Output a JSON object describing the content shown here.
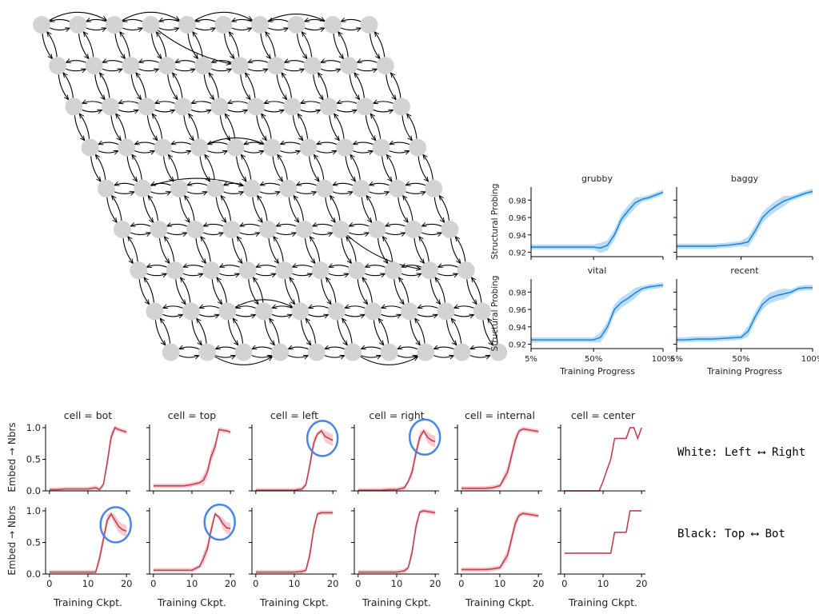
{
  "lattice": {
    "rows": 9,
    "cols": 10,
    "node_color": "#d3d3d3",
    "edge_color": "#000000"
  },
  "struct": {
    "ylabel": "Structural Probing",
    "xlabel": "Training Progress",
    "x_ticks": [
      "5%",
      "50%",
      "100%"
    ],
    "y_ticks": [
      "0.92",
      "0.94",
      "0.96",
      "0.98"
    ],
    "line_color": "#1f88e0",
    "band_color": "#a9d3f2"
  },
  "grid": {
    "ylabel": "Embed → Nbrs",
    "xlabel": "Training Ckpt.",
    "x_ticks": [
      "0",
      "10",
      "20"
    ],
    "y_ticks": [
      "0.0",
      "0.5",
      "1.0"
    ],
    "line_color": "#c0424f",
    "band_color": "#f2bcc4",
    "circle_color": "#4a86e8"
  },
  "annotations": {
    "white": "White: Left ⟷ Right",
    "black": "Black: Top ⟷ Bot"
  },
  "chart_data": [
    {
      "type": "line",
      "title": "grubby",
      "ylim": [
        0.915,
        0.995
      ],
      "x": [
        0.05,
        0.1,
        0.2,
        0.3,
        0.4,
        0.5,
        0.55,
        0.6,
        0.65,
        0.7,
        0.75,
        0.8,
        0.85,
        0.9,
        0.95,
        1.0
      ],
      "series": [
        {
          "values": [
            0.926,
            0.926,
            0.926,
            0.926,
            0.926,
            0.926,
            0.925,
            0.928,
            0.94,
            0.958,
            0.968,
            0.977,
            0.981,
            0.983,
            0.986,
            0.989
          ]
        }
      ]
    },
    {
      "type": "line",
      "title": "baggy",
      "ylim": [
        0.915,
        0.995
      ],
      "x": [
        0.05,
        0.1,
        0.2,
        0.3,
        0.4,
        0.5,
        0.55,
        0.6,
        0.65,
        0.7,
        0.75,
        0.8,
        0.85,
        0.9,
        0.95,
        1.0
      ],
      "series": [
        {
          "values": [
            0.927,
            0.927,
            0.927,
            0.927,
            0.928,
            0.93,
            0.932,
            0.945,
            0.96,
            0.968,
            0.974,
            0.979,
            0.982,
            0.985,
            0.988,
            0.99
          ]
        }
      ]
    },
    {
      "type": "line",
      "title": "vital",
      "ylim": [
        0.915,
        0.995
      ],
      "x": [
        0.05,
        0.1,
        0.2,
        0.3,
        0.4,
        0.5,
        0.55,
        0.6,
        0.65,
        0.7,
        0.75,
        0.8,
        0.85,
        0.9,
        0.95,
        1.0
      ],
      "series": [
        {
          "values": [
            0.925,
            0.925,
            0.925,
            0.925,
            0.925,
            0.925,
            0.928,
            0.94,
            0.96,
            0.968,
            0.973,
            0.979,
            0.984,
            0.986,
            0.987,
            0.988
          ]
        }
      ]
    },
    {
      "type": "line",
      "title": "recent",
      "ylim": [
        0.915,
        0.995
      ],
      "x": [
        0.05,
        0.1,
        0.2,
        0.3,
        0.4,
        0.5,
        0.55,
        0.6,
        0.65,
        0.7,
        0.75,
        0.8,
        0.85,
        0.9,
        0.95,
        1.0
      ],
      "series": [
        {
          "values": [
            0.925,
            0.925,
            0.926,
            0.926,
            0.927,
            0.928,
            0.935,
            0.952,
            0.966,
            0.973,
            0.976,
            0.978,
            0.98,
            0.984,
            0.985,
            0.985
          ]
        }
      ]
    },
    {
      "type": "line",
      "title": "cell = bot",
      "ylim": [
        0,
        1.05
      ],
      "x": [
        0,
        2,
        4,
        6,
        8,
        10,
        12,
        13,
        14,
        15,
        16,
        17,
        18,
        19,
        20
      ],
      "series": [
        {
          "values": [
            0.02,
            0.02,
            0.03,
            0.03,
            0.03,
            0.03,
            0.05,
            0.02,
            0.1,
            0.45,
            0.85,
            1.0,
            0.97,
            0.95,
            0.93
          ]
        }
      ]
    },
    {
      "type": "line",
      "title": "cell = top",
      "ylim": [
        0,
        1.05
      ],
      "x": [
        0,
        2,
        4,
        6,
        8,
        10,
        12,
        13,
        14,
        15,
        16,
        17,
        18,
        19,
        20
      ],
      "series": [
        {
          "values": [
            0.08,
            0.08,
            0.08,
            0.08,
            0.08,
            0.1,
            0.13,
            0.17,
            0.3,
            0.55,
            0.7,
            0.97,
            0.96,
            0.95,
            0.93
          ]
        }
      ]
    },
    {
      "type": "line",
      "title": "cell = left",
      "ylim": [
        0,
        1.05
      ],
      "x": [
        0,
        2,
        4,
        6,
        8,
        10,
        12,
        13,
        14,
        15,
        16,
        17,
        18,
        19,
        20
      ],
      "series": [
        {
          "values": [
            0.01,
            0.01,
            0.01,
            0.01,
            0.01,
            0.01,
            0.03,
            0.1,
            0.4,
            0.75,
            0.9,
            0.95,
            0.86,
            0.83,
            0.8
          ]
        }
      ]
    },
    {
      "type": "line",
      "title": "cell = right",
      "ylim": [
        0,
        1.05
      ],
      "x": [
        0,
        2,
        4,
        6,
        8,
        10,
        12,
        13,
        14,
        15,
        16,
        17,
        18,
        19,
        20
      ],
      "series": [
        {
          "values": [
            0.01,
            0.01,
            0.01,
            0.01,
            0.02,
            0.02,
            0.05,
            0.15,
            0.3,
            0.6,
            0.85,
            0.95,
            0.85,
            0.8,
            0.78
          ]
        }
      ]
    },
    {
      "type": "line",
      "title": "cell = internal",
      "ylim": [
        0,
        1.05
      ],
      "x": [
        0,
        2,
        4,
        6,
        8,
        10,
        12,
        13,
        14,
        15,
        16,
        17,
        18,
        19,
        20
      ],
      "series": [
        {
          "values": [
            0.04,
            0.04,
            0.04,
            0.04,
            0.05,
            0.08,
            0.3,
            0.55,
            0.8,
            0.95,
            0.98,
            0.97,
            0.96,
            0.95,
            0.94
          ]
        }
      ]
    },
    {
      "type": "line",
      "title": "cell = center",
      "ylim": [
        0,
        1.05
      ],
      "x": [
        0,
        4,
        8,
        9,
        10,
        11,
        12,
        13,
        14,
        15,
        16,
        17,
        18,
        19,
        20
      ],
      "series": [
        {
          "values": [
            0.0,
            0.0,
            0.0,
            0.0,
            0.15,
            0.33,
            0.5,
            0.83,
            0.83,
            0.83,
            0.83,
            1.0,
            1.0,
            0.83,
            1.0
          ]
        }
      ]
    },
    {
      "type": "line",
      "ylim": [
        0,
        1.05
      ],
      "x": [
        0,
        2,
        4,
        6,
        8,
        10,
        12,
        13,
        14,
        15,
        16,
        17,
        18,
        19,
        20
      ],
      "series": [
        {
          "values": [
            0.03,
            0.03,
            0.03,
            0.03,
            0.03,
            0.03,
            0.03,
            0.25,
            0.55,
            0.85,
            0.95,
            0.85,
            0.75,
            0.7,
            0.68
          ]
        }
      ]
    },
    {
      "type": "line",
      "ylim": [
        0,
        1.05
      ],
      "x": [
        0,
        2,
        4,
        6,
        8,
        10,
        12,
        13,
        14,
        15,
        16,
        17,
        18,
        19,
        20
      ],
      "series": [
        {
          "values": [
            0.06,
            0.06,
            0.06,
            0.06,
            0.06,
            0.06,
            0.12,
            0.25,
            0.4,
            0.7,
            0.95,
            0.9,
            0.8,
            0.73,
            0.72
          ]
        }
      ]
    },
    {
      "type": "line",
      "ylim": [
        0,
        1.05
      ],
      "x": [
        0,
        2,
        4,
        6,
        8,
        10,
        12,
        13,
        14,
        15,
        16,
        17,
        18,
        19,
        20
      ],
      "series": [
        {
          "values": [
            0.03,
            0.03,
            0.03,
            0.03,
            0.03,
            0.03,
            0.04,
            0.06,
            0.3,
            0.7,
            0.95,
            0.97,
            0.97,
            0.97,
            0.97
          ]
        }
      ]
    },
    {
      "type": "line",
      "ylim": [
        0,
        1.05
      ],
      "x": [
        0,
        2,
        4,
        6,
        8,
        10,
        12,
        13,
        14,
        15,
        16,
        17,
        18,
        19,
        20
      ],
      "series": [
        {
          "values": [
            0.03,
            0.03,
            0.03,
            0.03,
            0.03,
            0.03,
            0.05,
            0.1,
            0.35,
            0.75,
            0.98,
            1.0,
            0.99,
            0.98,
            0.97
          ]
        }
      ]
    },
    {
      "type": "line",
      "ylim": [
        0,
        1.05
      ],
      "x": [
        0,
        2,
        4,
        6,
        8,
        10,
        12,
        13,
        14,
        15,
        16,
        17,
        18,
        19,
        20
      ],
      "series": [
        {
          "values": [
            0.07,
            0.07,
            0.07,
            0.07,
            0.08,
            0.1,
            0.3,
            0.55,
            0.8,
            0.93,
            0.96,
            0.95,
            0.94,
            0.93,
            0.92
          ]
        }
      ]
    },
    {
      "type": "line",
      "ylim": [
        0,
        1.05
      ],
      "x": [
        0,
        4,
        8,
        10,
        12,
        13,
        14,
        15,
        16,
        17,
        18,
        19,
        20
      ],
      "series": [
        {
          "values": [
            0.33,
            0.33,
            0.33,
            0.33,
            0.33,
            0.66,
            0.66,
            0.66,
            0.66,
            1.0,
            1.0,
            1.0,
            1.0
          ]
        }
      ]
    }
  ]
}
